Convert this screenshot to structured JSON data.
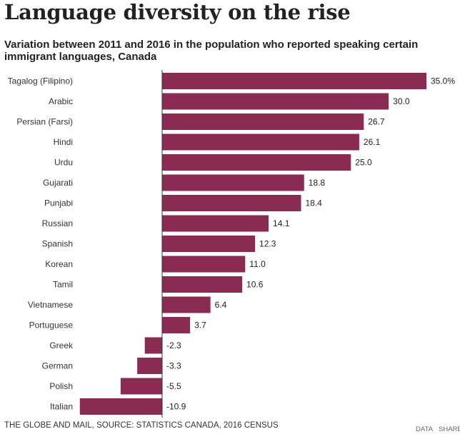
{
  "header": {
    "title": "Language diversity on the rise",
    "subtitle": "Variation between 2011 and 2016 in the population who reported speaking certain immigrant languages, Canada"
  },
  "footer": {
    "source": "THE GLOBE AND MAIL, SOURCE: STATISTICS CANADA, 2016 CENSUS",
    "data_link": "DATA",
    "share_link": "SHARE"
  },
  "colors": {
    "bar": "#8a2b54",
    "axis": "#333333",
    "text": "#222222"
  },
  "chart_data": {
    "type": "bar",
    "orientation": "horizontal",
    "title": "Language diversity on the rise",
    "subtitle": "Variation between 2011 and 2016 in the population who reported speaking certain immigrant languages, Canada",
    "xlabel": "",
    "ylabel": "",
    "unit": "%",
    "xlim": [
      -11,
      35
    ],
    "categories": [
      "Tagalog (Filipino)",
      "Arabic",
      "Persian (Farsi)",
      "Hindi",
      "Urdu",
      "Gujarati",
      "Punjabi",
      "Russian",
      "Spanish",
      "Korean",
      "Tamil",
      "Vietnamese",
      "Portuguese",
      "Greek",
      "German",
      "Polish",
      "Italian"
    ],
    "values": [
      35.0,
      30.0,
      26.7,
      26.1,
      25.0,
      18.8,
      18.4,
      14.1,
      12.3,
      11.0,
      10.6,
      6.4,
      3.7,
      -2.3,
      -3.3,
      -5.5,
      -10.9
    ],
    "value_labels": [
      "35.0%",
      "30.0",
      "26.7",
      "26.1",
      "25.0",
      "18.8",
      "18.4",
      "14.1",
      "12.3",
      "11.0",
      "10.6",
      "6.4",
      "3.7",
      "-2.3",
      "-3.3",
      "-5.5",
      "-10.9"
    ],
    "grid": false,
    "legend": "none"
  }
}
